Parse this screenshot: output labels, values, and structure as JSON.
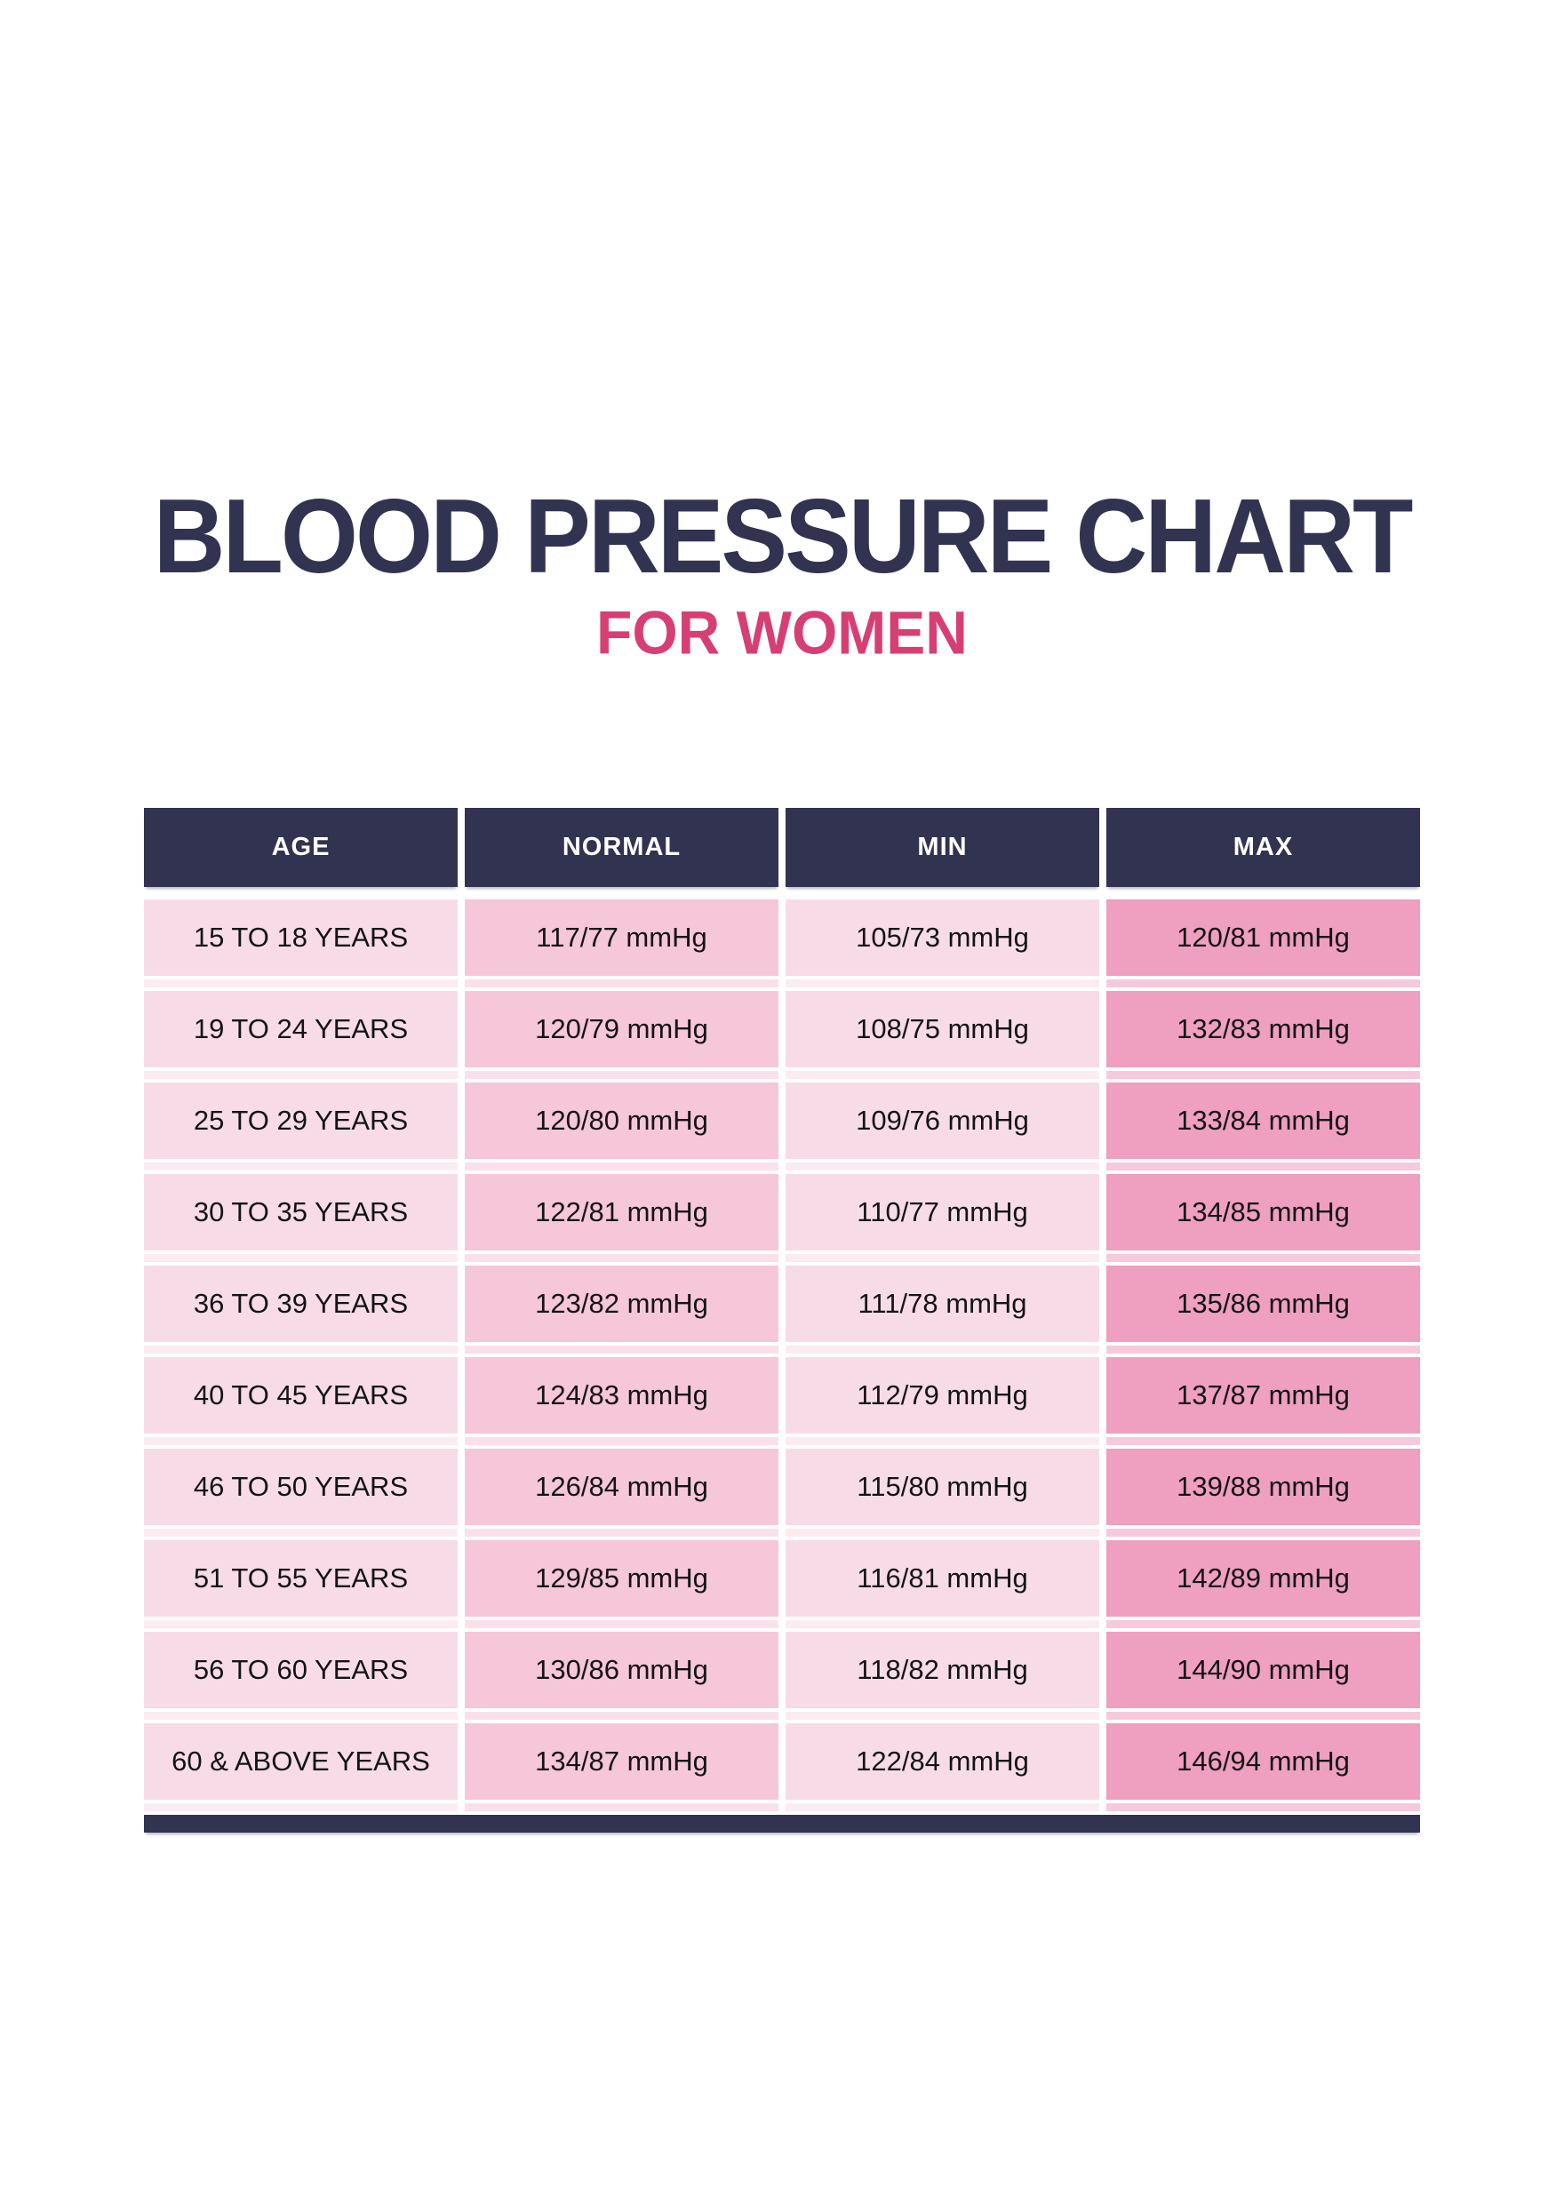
{
  "title": "BLOOD PRESSURE CHART",
  "subtitle": "FOR WOMEN",
  "colors": {
    "navy": "#323351",
    "pink_accent": "#d63f74",
    "column_light_pink": "#f7dce8",
    "column_medium_pink": "#f6c6d9",
    "column_dark_pink": "#ef9fc0"
  },
  "chart_data": {
    "type": "table",
    "title": "BLOOD PRESSURE CHART FOR WOMEN",
    "unit": "mmHg",
    "columns": [
      "AGE",
      "NORMAL",
      "MIN",
      "MAX"
    ],
    "rows": [
      [
        "15 TO 18 YEARS",
        "117/77 mmHg",
        "105/73 mmHg",
        "120/81 mmHg"
      ],
      [
        "19 TO 24 YEARS",
        "120/79 mmHg",
        "108/75 mmHg",
        "132/83 mmHg"
      ],
      [
        "25 TO 29 YEARS",
        "120/80 mmHg",
        "109/76 mmHg",
        "133/84 mmHg"
      ],
      [
        "30 TO 35 YEARS",
        "122/81 mmHg",
        "110/77 mmHg",
        "134/85 mmHg"
      ],
      [
        "36 TO 39 YEARS",
        "123/82 mmHg",
        "111/78 mmHg",
        "135/86 mmHg"
      ],
      [
        "40 TO 45 YEARS",
        "124/83 mmHg",
        "112/79 mmHg",
        "137/87 mmHg"
      ],
      [
        "46 TO 50 YEARS",
        "126/84 mmHg",
        "115/80 mmHg",
        "139/88 mmHg"
      ],
      [
        "51 TO 55 YEARS",
        "129/85 mmHg",
        "116/81 mmHg",
        "142/89 mmHg"
      ],
      [
        "56 TO 60 YEARS",
        "130/86 mmHg",
        "118/82 mmHg",
        "144/90 mmHg"
      ],
      [
        "60 & ABOVE YEARS",
        "134/87 mmHg",
        "122/84 mmHg",
        "146/94 mmHg"
      ]
    ]
  }
}
